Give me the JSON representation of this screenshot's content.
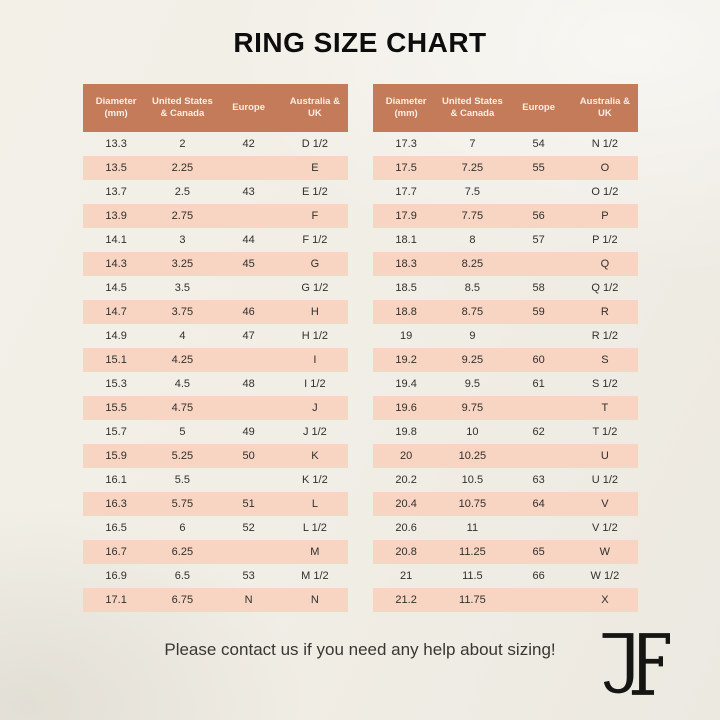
{
  "title": "RING SIZE CHART",
  "chart_data": {
    "type": "table",
    "title": "RING SIZE CHART",
    "columns": [
      "Diameter (mm)",
      "United States & Canada",
      "Europe",
      "Australia & UK"
    ],
    "left_rows": [
      [
        "13.3",
        "2",
        "42",
        "D 1/2"
      ],
      [
        "13.5",
        "2.25",
        "",
        "E"
      ],
      [
        "13.7",
        "2.5",
        "43",
        "E 1/2"
      ],
      [
        "13.9",
        "2.75",
        "",
        "F"
      ],
      [
        "14.1",
        "3",
        "44",
        "F 1/2"
      ],
      [
        "14.3",
        "3.25",
        "45",
        "G"
      ],
      [
        "14.5",
        "3.5",
        "",
        "G 1/2"
      ],
      [
        "14.7",
        "3.75",
        "46",
        "H"
      ],
      [
        "14.9",
        "4",
        "47",
        "H 1/2"
      ],
      [
        "15.1",
        "4.25",
        "",
        "I"
      ],
      [
        "15.3",
        "4.5",
        "48",
        "I 1/2"
      ],
      [
        "15.5",
        "4.75",
        "",
        "J"
      ],
      [
        "15.7",
        "5",
        "49",
        "J 1/2"
      ],
      [
        "15.9",
        "5.25",
        "50",
        "K"
      ],
      [
        "16.1",
        "5.5",
        "",
        "K 1/2"
      ],
      [
        "16.3",
        "5.75",
        "51",
        "L"
      ],
      [
        "16.5",
        "6",
        "52",
        "L 1/2"
      ],
      [
        "16.7",
        "6.25",
        "",
        "M"
      ],
      [
        "16.9",
        "6.5",
        "53",
        "M 1/2"
      ],
      [
        "17.1",
        "6.75",
        "N",
        "N"
      ]
    ],
    "right_rows": [
      [
        "17.3",
        "7",
        "54",
        "N 1/2"
      ],
      [
        "17.5",
        "7.25",
        "55",
        "O"
      ],
      [
        "17.7",
        "7.5",
        "",
        "O 1/2"
      ],
      [
        "17.9",
        "7.75",
        "56",
        "P"
      ],
      [
        "18.1",
        "8",
        "57",
        "P 1/2"
      ],
      [
        "18.3",
        "8.25",
        "",
        "Q"
      ],
      [
        "18.5",
        "8.5",
        "58",
        "Q 1/2"
      ],
      [
        "18.8",
        "8.75",
        "59",
        "R"
      ],
      [
        "19",
        "9",
        "",
        "R 1/2"
      ],
      [
        "19.2",
        "9.25",
        "60",
        "S"
      ],
      [
        "19.4",
        "9.5",
        "61",
        "S 1/2"
      ],
      [
        "19.6",
        "9.75",
        "",
        "T"
      ],
      [
        "19.8",
        "10",
        "62",
        "T 1/2"
      ],
      [
        "20",
        "10.25",
        "",
        "U"
      ],
      [
        "20.2",
        "10.5",
        "63",
        "U 1/2"
      ],
      [
        "20.4",
        "10.75",
        "64",
        "V"
      ],
      [
        "20.6",
        "11",
        "",
        "V 1/2"
      ],
      [
        "20.8",
        "11.25",
        "65",
        "W"
      ],
      [
        "21",
        "11.5",
        "66",
        "W 1/2"
      ],
      [
        "21.2",
        "11.75",
        "",
        "X"
      ]
    ]
  },
  "footer": {
    "note": "Please contact us if you need any help about sizing!",
    "logo_monogram": "JF"
  },
  "colors": {
    "header_bg": "#c47b59",
    "row_alt_bg": "#f8d4c2",
    "page_bg": "#f1eee6",
    "header_text": "#f8efe8",
    "body_text": "#30302e",
    "title_text": "#0d0d0d",
    "logo_color": "#151514"
  }
}
